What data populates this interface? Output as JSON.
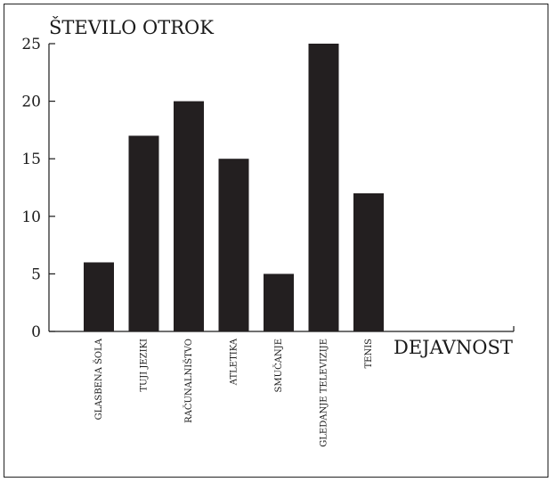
{
  "chart_data": {
    "type": "bar",
    "ylabel": "ŠTEVILO OTROK",
    "xlabel": "DEJAVNOST",
    "categories": [
      "GLASBENA ŠOLA",
      "TUJI JEZIKI",
      "RAČUNALNIŠTVO",
      "ATLETIKA",
      "SMUČANJE",
      "GLEDANJE TELEVIZIJE",
      "TENIS"
    ],
    "values": [
      6,
      17,
      20,
      15,
      5,
      25,
      12
    ],
    "ylim": [
      0,
      25
    ],
    "yticks": [
      "0",
      "5",
      "10",
      "15",
      "20",
      "25"
    ],
    "grid": false,
    "bar_color": "#231f20"
  }
}
